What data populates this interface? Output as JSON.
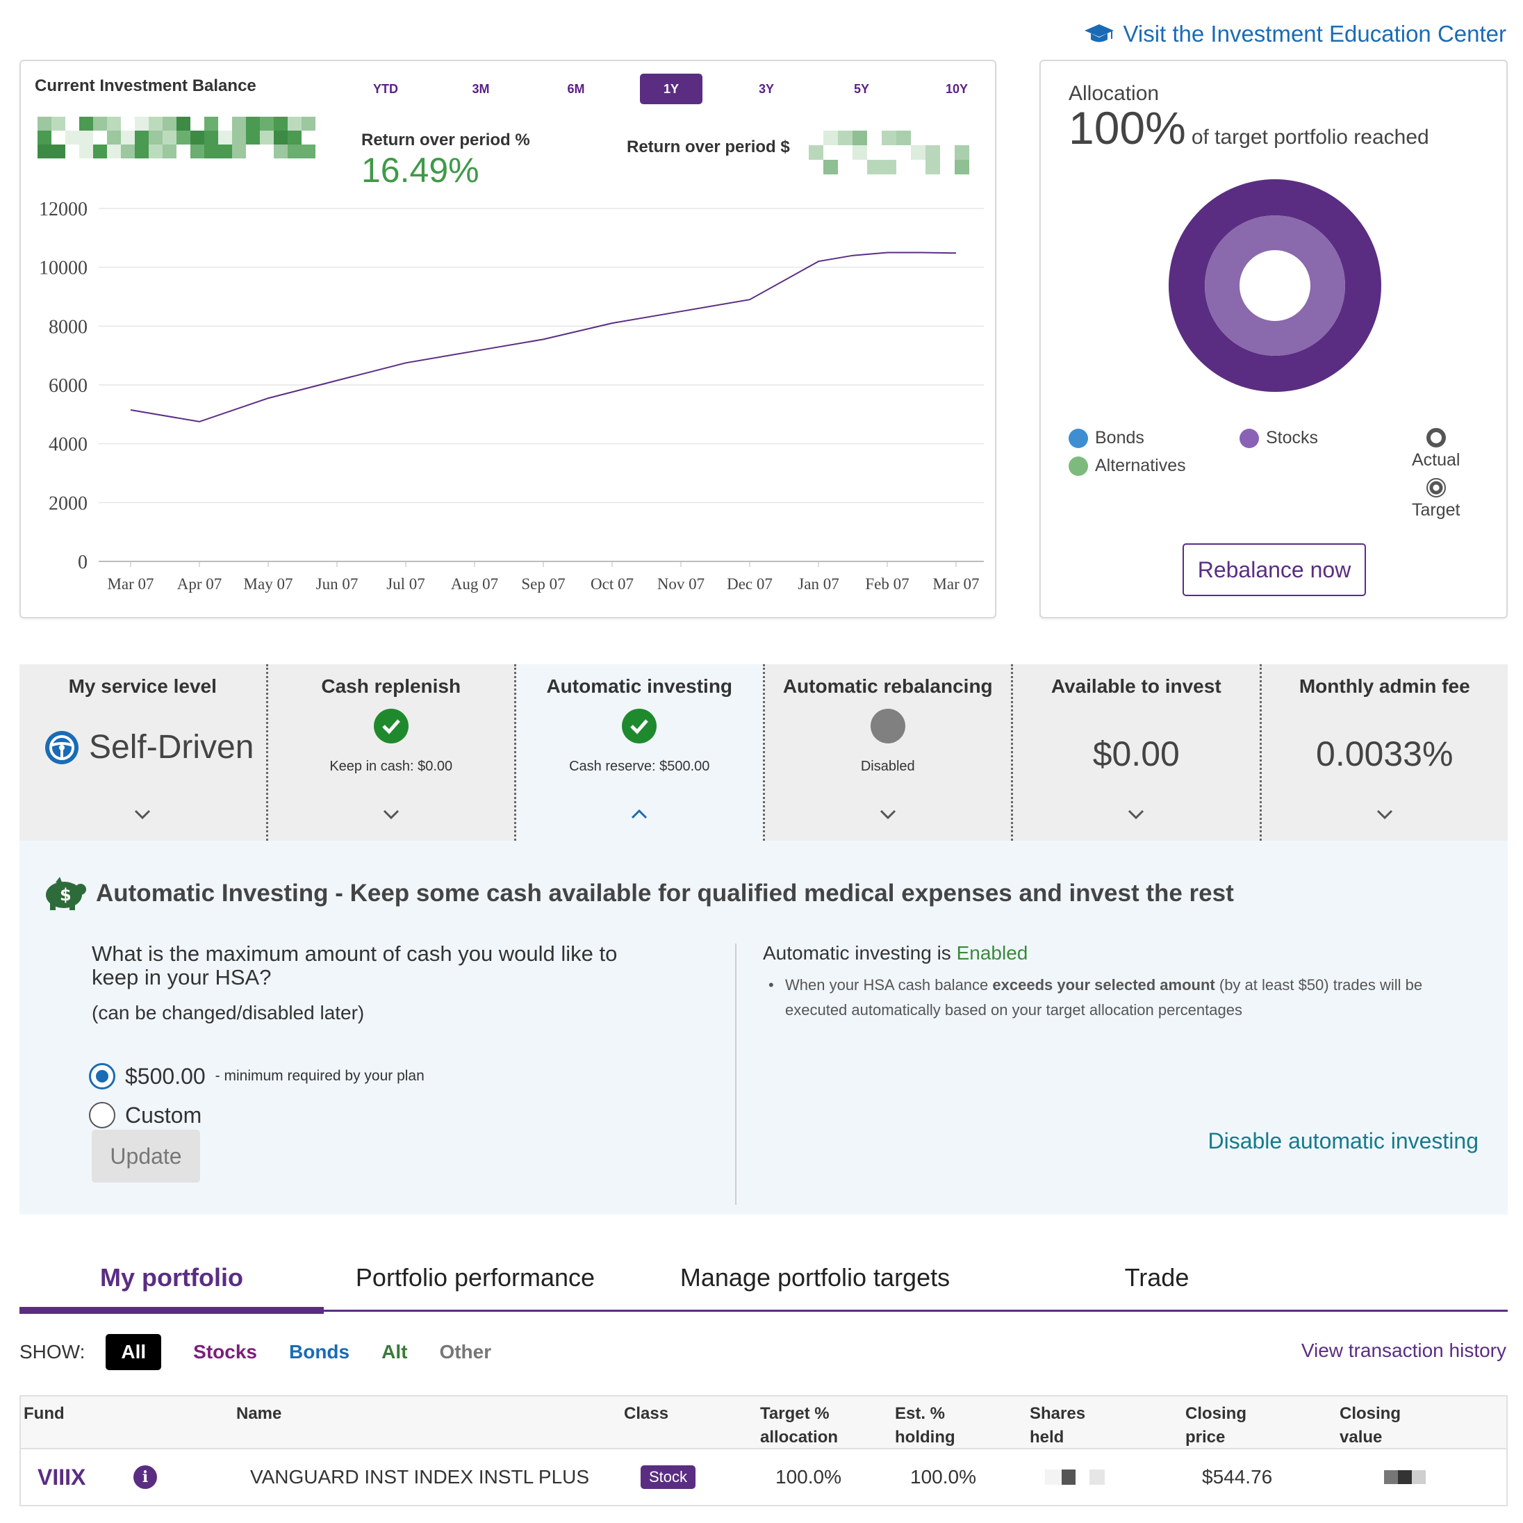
{
  "header": {
    "edu_link": "Visit the Investment Education Center",
    "edu_icon": "graduation-cap-icon"
  },
  "balance": {
    "title": "Current Investment Balance",
    "periods": [
      "YTD",
      "3M",
      "6M",
      "1Y",
      "3Y",
      "5Y",
      "10Y"
    ],
    "active_period": "1Y",
    "return_pct_label": "Return over period %",
    "return_pct_value": "16.49%",
    "return_usd_label": "Return over period $"
  },
  "chart_data": {
    "type": "line",
    "title": "",
    "xlabel": "",
    "ylabel": "",
    "categories": [
      "Mar 07",
      "Apr 07",
      "May 07",
      "Jun 07",
      "Jul 07",
      "Aug 07",
      "Sep 07",
      "Oct 07",
      "Nov 07",
      "Dec 07",
      "Jan 07",
      "Feb 07",
      "Mar 07"
    ],
    "yticks": [
      "12000",
      "10000",
      "8000",
      "6000",
      "4000",
      "2000",
      "0"
    ],
    "ylim": [
      0,
      12000
    ],
    "grid": true,
    "color": "#5a2d82",
    "points": [
      [
        0,
        5150
      ],
      [
        1,
        4750
      ],
      [
        2,
        5550
      ],
      [
        3,
        6150
      ],
      [
        4,
        6750
      ],
      [
        5,
        7150
      ],
      [
        6,
        7550
      ],
      [
        7,
        8100
      ],
      [
        8,
        8500
      ],
      [
        9,
        8900
      ],
      [
        10,
        10200
      ],
      [
        10.5,
        10400
      ],
      [
        11,
        10500
      ],
      [
        11.5,
        10500
      ],
      [
        12,
        10480
      ]
    ]
  },
  "allocation": {
    "title": "Allocation",
    "pct": "100%",
    "subtitle": "of target portfolio reached",
    "outer_color": "#5a2d82",
    "inner_color": "#8a69ad",
    "legend": [
      {
        "label": "Bonds",
        "color": "#3d8fd1"
      },
      {
        "label": "Stocks",
        "color": "#8a62b5"
      },
      {
        "label": "Alternatives",
        "color": "#7dba7d"
      }
    ],
    "ring_legend": {
      "actual": "Actual",
      "target": "Target"
    },
    "rebalance_label": "Rebalance now"
  },
  "tiles": [
    {
      "title": "My service level",
      "value": "Self-Driven",
      "icon": "steering-wheel-icon"
    },
    {
      "title": "Cash replenish",
      "sub": "Keep in cash: $0.00",
      "icon": "check-circle-icon",
      "status_color": "#1f8a2d"
    },
    {
      "title": "Automatic investing",
      "sub": "Cash reserve: $500.00",
      "icon": "check-circle-icon",
      "status_color": "#1f8a2d"
    },
    {
      "title": "Automatic rebalancing",
      "sub": "Disabled",
      "icon": "disabled-circle-icon",
      "status_color": "#808080"
    },
    {
      "title": "Available to invest",
      "value": "$0.00"
    },
    {
      "title": "Monthly admin fee",
      "value": "0.0033%"
    }
  ],
  "auto_investing": {
    "icon": "piggy-bank-icon",
    "heading": "Automatic Investing - Keep some cash available for qualified medical expenses and invest the rest",
    "question": "What is the maximum amount of cash you would like to keep in your HSA?",
    "question_note": "(can be changed/disabled later)",
    "option_min_value": "$500.00",
    "option_min_hint": "- minimum required by your plan",
    "option_custom": "Custom",
    "update_label": "Update",
    "status_prefix": "Automatic investing is ",
    "status_value": "Enabled",
    "bullet_pre": "When your HSA cash balance ",
    "bullet_bold": "exceeds your selected amount",
    "bullet_post": " (by at least $50) trades will be executed automatically based on your target allocation percentages",
    "disable_link": "Disable automatic investing"
  },
  "tabs": [
    "My portfolio",
    "Portfolio performance",
    "Manage portfolio targets",
    "Trade"
  ],
  "filters": {
    "label": "SHOW:",
    "chips": [
      {
        "label": "All",
        "color": "#ffffff"
      },
      {
        "label": "Stocks",
        "color": "#7a1f7a"
      },
      {
        "label": "Bonds",
        "color": "#1a6bb5"
      },
      {
        "label": "Alt",
        "color": "#3a7a3a"
      },
      {
        "label": "Other",
        "color": "#777777"
      }
    ],
    "history_link": "View transaction history"
  },
  "table": {
    "headers": {
      "fund": "Fund",
      "name": "Name",
      "class": "Class",
      "target_l1": "Target %",
      "target_l2": "allocation",
      "est_l1": "Est. %",
      "est_l2": "holding",
      "shares_l1": "Shares",
      "shares_l2": "held",
      "price_l1": "Closing",
      "price_l2": "price",
      "value_l1": "Closing",
      "value_l2": "value"
    },
    "rows": [
      {
        "fund": "VIIIX",
        "name": "VANGUARD INST INDEX INSTL PLUS",
        "class": "Stock",
        "target": "100.0%",
        "est": "100.0%",
        "price": "$544.76"
      }
    ]
  }
}
